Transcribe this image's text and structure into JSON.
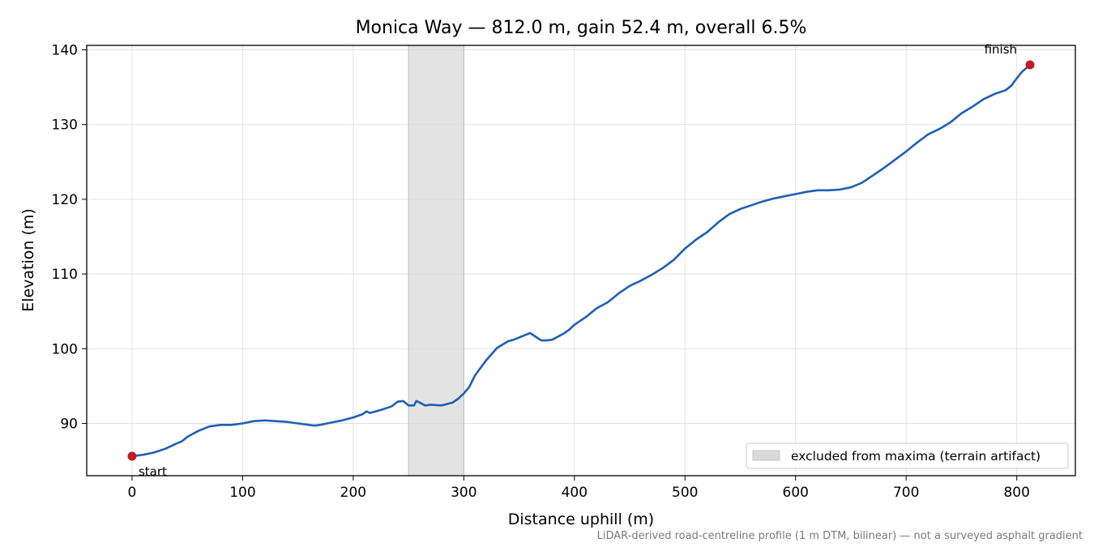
{
  "chart_data": {
    "type": "line",
    "title": "Monica Way — 812.0 m, gain 52.4 m, overall 6.5%",
    "xlabel": "Distance uphill (m)",
    "ylabel": "Elevation (m)",
    "xlim": [
      -41,
      853
    ],
    "ylim": [
      83,
      140.6
    ],
    "xticks": [
      0,
      100,
      200,
      300,
      400,
      500,
      600,
      700,
      800
    ],
    "yticks": [
      90,
      100,
      110,
      120,
      130,
      140
    ],
    "grid": true,
    "series": [
      {
        "color": "#1f5fb4",
        "x": [
          0,
          10,
          20,
          30,
          40,
          45,
          50,
          55,
          60,
          70,
          80,
          90,
          100,
          110,
          120,
          130,
          140,
          150,
          160,
          165,
          170,
          180,
          190,
          200,
          208,
          212,
          215,
          225,
          235,
          240,
          245,
          250,
          255,
          257,
          260,
          265,
          270,
          280,
          290,
          295,
          300,
          305,
          310,
          320,
          330,
          340,
          345,
          350,
          355,
          360,
          365,
          370,
          375,
          380,
          385,
          390,
          395,
          400,
          410,
          420,
          430,
          440,
          450,
          460,
          470,
          480,
          490,
          500,
          510,
          520,
          530,
          540,
          550,
          560,
          570,
          580,
          590,
          600,
          610,
          620,
          630,
          640,
          650,
          660,
          670,
          680,
          690,
          700,
          710,
          720,
          730,
          740,
          750,
          760,
          770,
          780,
          790,
          795,
          800,
          805,
          812
        ],
        "y": [
          85.6,
          85.8,
          86.1,
          86.6,
          87.3,
          87.6,
          88.2,
          88.6,
          89.0,
          89.6,
          89.8,
          89.8,
          90.0,
          90.3,
          90.4,
          90.3,
          90.2,
          90.0,
          89.8,
          89.7,
          89.8,
          90.1,
          90.4,
          90.8,
          91.2,
          91.6,
          91.4,
          91.8,
          92.3,
          92.9,
          93.0,
          92.4,
          92.4,
          93.0,
          92.8,
          92.4,
          92.5,
          92.4,
          92.8,
          93.3,
          94.0,
          94.9,
          96.4,
          98.4,
          100.1,
          101.0,
          101.2,
          101.5,
          101.8,
          102.1,
          101.6,
          101.1,
          101.1,
          101.2,
          101.6,
          102.0,
          102.5,
          103.2,
          104.2,
          105.4,
          106.2,
          107.4,
          108.4,
          109.1,
          109.9,
          110.8,
          111.9,
          113.4,
          114.6,
          115.6,
          116.9,
          118.0,
          118.7,
          119.2,
          119.7,
          120.1,
          120.4,
          120.7,
          121.0,
          121.2,
          121.2,
          121.3,
          121.6,
          122.2,
          123.2,
          124.2,
          125.3,
          126.4,
          127.6,
          128.7,
          129.4,
          130.3,
          131.5,
          132.4,
          133.4,
          134.1,
          134.6,
          135.2,
          136.2,
          137.1,
          138.0
        ]
      }
    ],
    "highlight_band": {
      "x": [
        250,
        300
      ],
      "color": "#d9d9d9"
    },
    "markers": [
      {
        "x": 0,
        "y": 85.6,
        "label": "start",
        "color": "#c41c24"
      },
      {
        "x": 812,
        "y": 138.0,
        "label": "finish",
        "color": "#c41c24"
      }
    ],
    "legend": {
      "label": "excluded from maxima (terrain artifact)",
      "placement": "lower-right"
    },
    "footnote": "LiDAR-derived road-centreline profile (1 m DTM, bilinear) — not a surveyed asphalt gradient"
  }
}
